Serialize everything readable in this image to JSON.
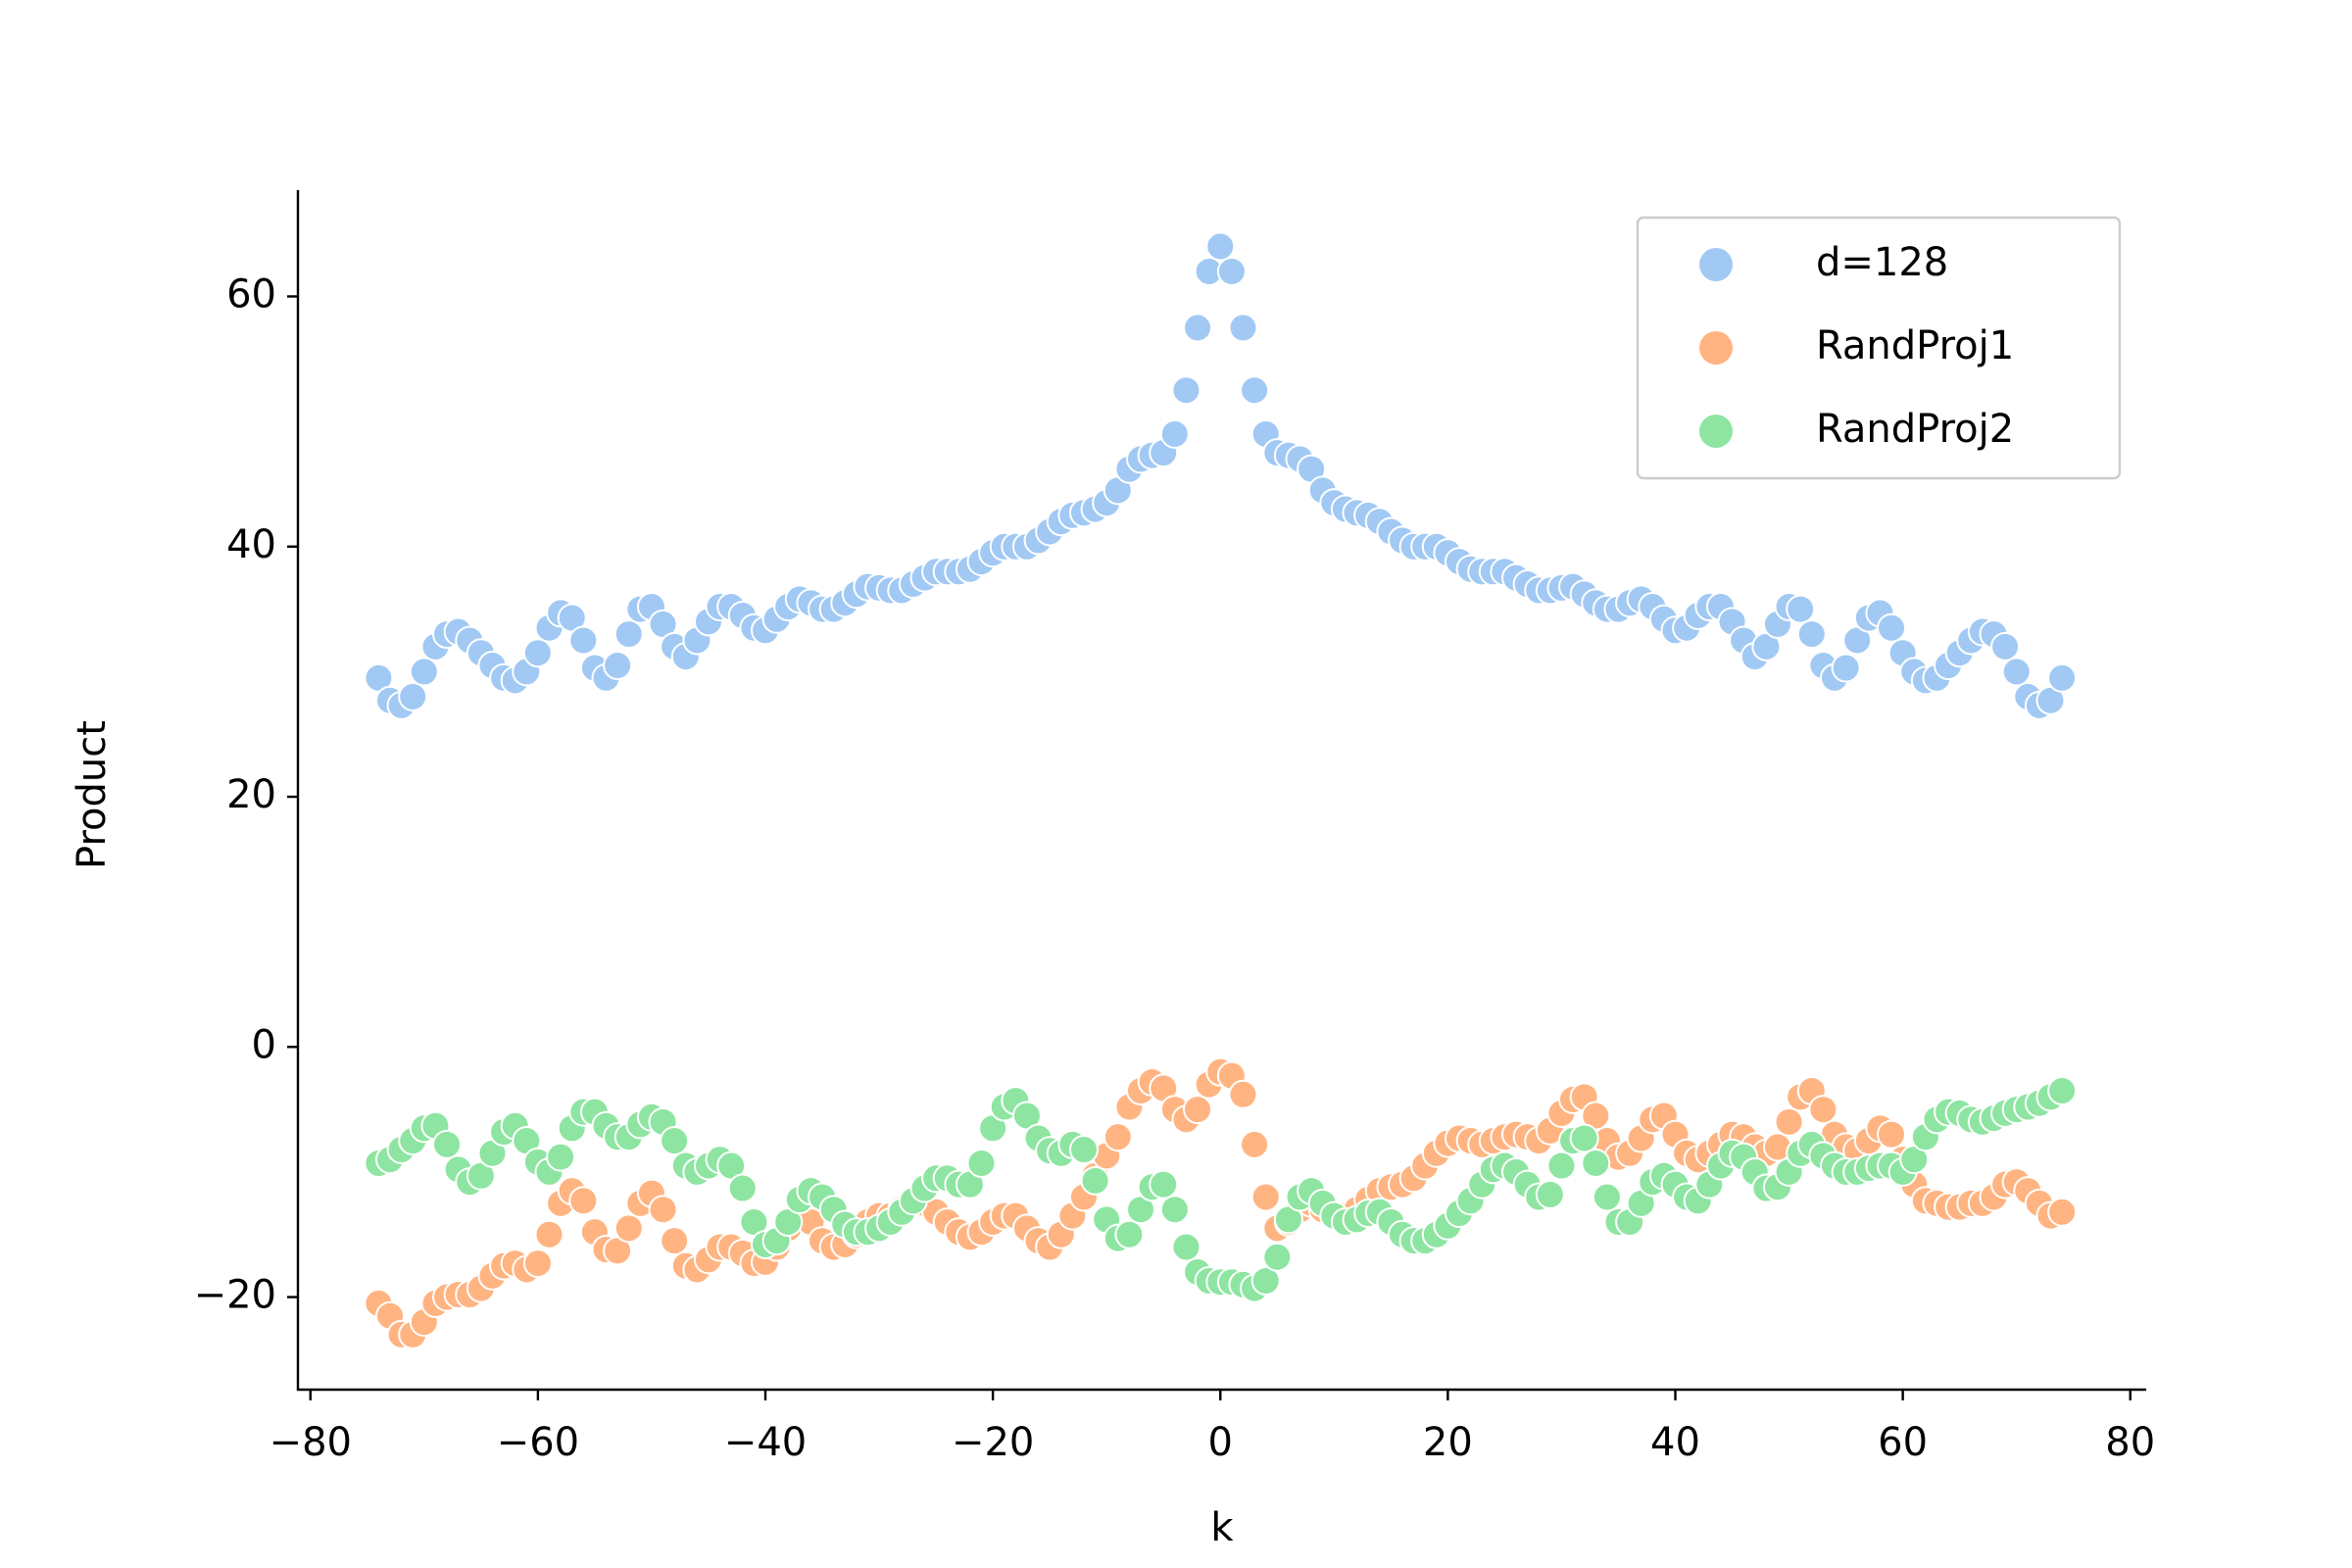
{
  "chart_data": {
    "type": "scatter",
    "xlabel": "k",
    "ylabel": "Product",
    "xlim": [
      -81.1,
      81.4
    ],
    "ylim": [
      -27.4,
      68.5
    ],
    "xticks": [
      {
        "value": -80,
        "label": "−80"
      },
      {
        "value": -60,
        "label": "−60"
      },
      {
        "value": -40,
        "label": "−40"
      },
      {
        "value": -20,
        "label": "−20"
      },
      0,
      20,
      40,
      60,
      80
    ],
    "yticks": [
      {
        "value": -20,
        "label": "−20"
      },
      0,
      20,
      40,
      60
    ],
    "legend": "upper right",
    "x": [
      -74,
      -73,
      -72,
      -71,
      -70,
      -69,
      -68,
      -67,
      -66,
      -65,
      -64,
      -63,
      -62,
      -61,
      -60,
      -59,
      -58,
      -57,
      -56,
      -55,
      -54,
      -53,
      -52,
      -51,
      -50,
      -49,
      -48,
      -47,
      -46,
      -45,
      -44,
      -43,
      -42,
      -41,
      -40,
      -39,
      -38,
      -37,
      -36,
      -35,
      -34,
      -33,
      -32,
      -31,
      -30,
      -29,
      -28,
      -27,
      -26,
      -25,
      -24,
      -23,
      -22,
      -21,
      -20,
      -19,
      -18,
      -17,
      -16,
      -15,
      -14,
      -13,
      -12,
      -11,
      -10,
      -9,
      -8,
      -7,
      -6,
      -5,
      -4,
      -3,
      -2,
      -1,
      0,
      1,
      2,
      3,
      4,
      5,
      6,
      7,
      8,
      9,
      10,
      11,
      12,
      13,
      14,
      15,
      16,
      17,
      18,
      19,
      20,
      21,
      22,
      23,
      24,
      25,
      26,
      27,
      28,
      29,
      30,
      31,
      32,
      33,
      34,
      35,
      36,
      37,
      38,
      39,
      40,
      41,
      42,
      43,
      44,
      45,
      46,
      47,
      48,
      49,
      50,
      51,
      52,
      53,
      54,
      55,
      56,
      57,
      58,
      59,
      60,
      61,
      62,
      63,
      64,
      65,
      66,
      67,
      68,
      69,
      70,
      71,
      72,
      73,
      74
    ],
    "series": [
      {
        "name": "d=128",
        "color": "#a1c9f4",
        "values": [
          29.5,
          27.7,
          27.3,
          28,
          30,
          32,
          33,
          33.2,
          32.5,
          31.5,
          30.5,
          29.5,
          29.3,
          30,
          31.5,
          33.5,
          34.7,
          34.3,
          32.5,
          30.3,
          29.5,
          30.5,
          33,
          35,
          35.2,
          33.8,
          32,
          31.2,
          32.5,
          34,
          35.2,
          35.2,
          34.5,
          33.5,
          33.3,
          34.2,
          35.2,
          35.8,
          35.5,
          35,
          35,
          35.5,
          36.2,
          36.8,
          36.7,
          36.5,
          36.5,
          37,
          37.5,
          38,
          38,
          38,
          38.2,
          38.8,
          39.5,
          40,
          40,
          40,
          40.5,
          41.2,
          42,
          42.5,
          42.7,
          43,
          43.5,
          44.5,
          46.2,
          47,
          47.3,
          47.5,
          49,
          52.5,
          57.5,
          62,
          64,
          62,
          57.5,
          52.5,
          49,
          47.5,
          47.3,
          47,
          46.2,
          44.5,
          43.5,
          43,
          42.7,
          42.5,
          42,
          41.2,
          40.5,
          40,
          40,
          40,
          39.5,
          38.8,
          38.2,
          38,
          38,
          38,
          37.5,
          37,
          36.5,
          36.5,
          36.7,
          36.8,
          36.2,
          35.5,
          35,
          35,
          35.5,
          35.8,
          35.2,
          34.2,
          33.3,
          33.5,
          34.5,
          35.2,
          35.2,
          34,
          32.5,
          31.2,
          32,
          33.8,
          35.2,
          35,
          33,
          30.5,
          29.5,
          30.3,
          32.5,
          34.3,
          34.7,
          33.5,
          31.5,
          30,
          29.3,
          29.5,
          30.5,
          31.5,
          32.5,
          33.2,
          33,
          32,
          30,
          28,
          27.3,
          27.7,
          29.5
        ]
      },
      {
        "name": "RandProj1",
        "color": "#ffb482",
        "values": [
          -20.5,
          -21.5,
          -23,
          -23,
          -22,
          -20.5,
          -20,
          -19.8,
          -19.8,
          -19.3,
          -18.3,
          -17.5,
          -17.3,
          -17.8,
          -17.3,
          -15,
          -12.5,
          -11.5,
          -12.3,
          -14.8,
          -16.2,
          -16.3,
          -14.5,
          -12.5,
          -11.7,
          -13,
          -15.5,
          -17.5,
          -17.8,
          -17,
          -16,
          -16,
          -16.5,
          -17.3,
          -17.2,
          -16,
          -14.5,
          -13.5,
          -14,
          -15.5,
          -16,
          -15.8,
          -15,
          -14,
          -13.5,
          -13.5,
          -13,
          -12.5,
          -12.5,
          -13.2,
          -14,
          -14.8,
          -15.2,
          -14.8,
          -14,
          -13.5,
          -13.5,
          -14.5,
          -15.5,
          -16,
          -15,
          -13.5,
          -12,
          -10.3,
          -8.7,
          -7.2,
          -4.8,
          -3.5,
          -2.8,
          -3.3,
          -5,
          -5.8,
          -5,
          -3,
          -2,
          -2.3,
          -3.8,
          -7.8,
          -12,
          -14.5,
          -14,
          -13,
          -12.5,
          -13,
          -13.5,
          -13.5,
          -13,
          -12.2,
          -11.5,
          -11.2,
          -11,
          -10.5,
          -9.5,
          -8.5,
          -7.7,
          -7.3,
          -7.5,
          -7.8,
          -7.5,
          -7.2,
          -7,
          -7.2,
          -7.5,
          -6.7,
          -5.3,
          -4.2,
          -4,
          -5.5,
          -7.5,
          -8.8,
          -8.5,
          -7.3,
          -5.8,
          -5.5,
          -7,
          -8.5,
          -9,
          -8.5,
          -7.8,
          -7,
          -7.2,
          -8,
          -8.5,
          -8,
          -6,
          -4,
          -3.5,
          -5,
          -7,
          -8,
          -8.3,
          -7.5,
          -6.5,
          -7,
          -9,
          -11,
          -12.3,
          -12.5,
          -12.8,
          -12.8,
          -12.5,
          -12.5,
          -12,
          -11,
          -10.8,
          -11.5,
          -12.5,
          -13.5,
          -13.2
        ]
      },
      {
        "name": "RandProj2",
        "color": "#8de5a1",
        "values": [
          -9.3,
          -9,
          -8.2,
          -7.5,
          -6.5,
          -6.3,
          -7.8,
          -9.8,
          -10.8,
          -10.3,
          -8.5,
          -6.8,
          -6.3,
          -7.5,
          -9.2,
          -10,
          -8.8,
          -6.5,
          -5.2,
          -5.2,
          -6.3,
          -7.2,
          -7.2,
          -6.2,
          -5.6,
          -6,
          -7.5,
          -9.5,
          -10,
          -9.5,
          -9,
          -9.5,
          -11.3,
          -14,
          -15.8,
          -15.5,
          -14,
          -12.2,
          -11.5,
          -12,
          -13,
          -14.2,
          -14.8,
          -14.8,
          -14.5,
          -14,
          -13.2,
          -12.3,
          -11.3,
          -10.5,
          -10.5,
          -11,
          -11,
          -9.3,
          -6.5,
          -4.8,
          -4.3,
          -5.5,
          -7.3,
          -8.3,
          -8.5,
          -7.8,
          -8.2,
          -10.7,
          -13.8,
          -15.3,
          -15,
          -13,
          -11.2,
          -11,
          -13,
          -16,
          -18,
          -18.7,
          -18.8,
          -18.8,
          -19,
          -19.3,
          -18.7,
          -16.8,
          -13.8,
          -12,
          -11.5,
          -12.5,
          -13.5,
          -14,
          -13.8,
          -13.3,
          -13.2,
          -14,
          -15,
          -15.5,
          -15.5,
          -15,
          -14.3,
          -13.3,
          -12.3,
          -11,
          -9.8,
          -9.5,
          -10,
          -11,
          -12,
          -11.8,
          -9.5,
          -7.5,
          -7.3,
          -9.3,
          -12,
          -14,
          -14,
          -12.5,
          -10.8,
          -10.3,
          -11,
          -12,
          -12.3,
          -11,
          -9.5,
          -8.5,
          -8.8,
          -10,
          -11.3,
          -11.2,
          -10,
          -8.5,
          -7.8,
          -8.7,
          -9.5,
          -10,
          -10,
          -9.7,
          -9.5,
          -9.5,
          -10,
          -9,
          -7.2,
          -5.8,
          -5.2,
          -5.3,
          -5.8,
          -6,
          -5.7,
          -5.3,
          -5,
          -4.8,
          -4.5,
          -4,
          -3.5
        ]
      }
    ]
  }
}
